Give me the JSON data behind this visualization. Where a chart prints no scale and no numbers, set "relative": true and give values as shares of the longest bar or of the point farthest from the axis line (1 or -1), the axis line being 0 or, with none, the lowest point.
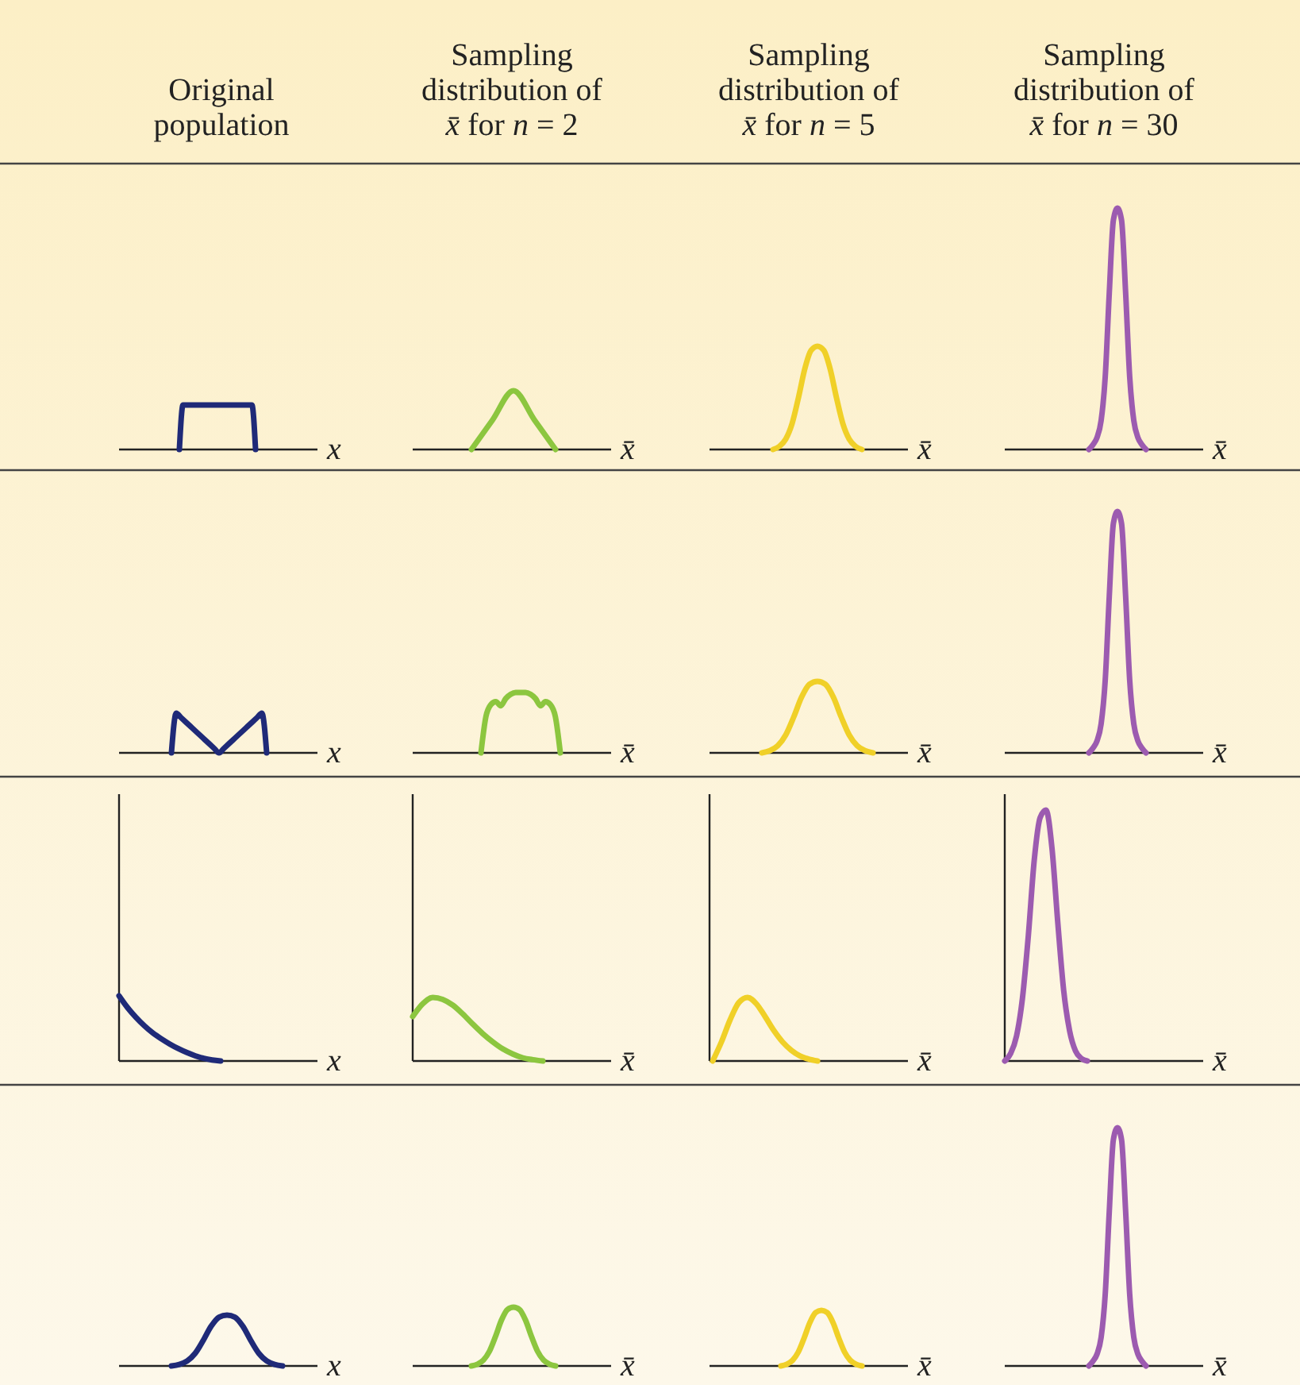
{
  "chart_data": [
    {
      "type": "line",
      "title": "Original population",
      "xlabel": "x",
      "relative": true,
      "categories": [
        null,
        null,
        null,
        null,
        null,
        null,
        null,
        null,
        null,
        null,
        null,
        null,
        null,
        null,
        null,
        null,
        null,
        null,
        null,
        null,
        null,
        null
      ],
      "series": [
        {
          "color": "#1f2a78",
          "values": [
            0,
            1,
            1,
            1,
            1,
            1,
            1,
            1,
            1,
            1,
            1,
            1,
            1,
            1,
            1,
            1,
            1,
            1,
            1,
            1,
            1,
            0
          ]
        }
      ]
    },
    {
      "type": "line",
      "title": "Sampling distribution of x̄ for n = 2",
      "xlabel": "x̄",
      "relative": true,
      "categories": [
        null,
        null,
        null,
        null,
        null
      ],
      "series": [
        {
          "color": "#8cc63f",
          "values": [
            0,
            0.5,
            1,
            0.5,
            0
          ]
        }
      ]
    },
    {
      "type": "line",
      "title": "Sampling distribution of x̄ for n = 5",
      "xlabel": "x̄",
      "relative": true,
      "categories": [
        null,
        null,
        null,
        null,
        null,
        null,
        null,
        null,
        null,
        null,
        null,
        null,
        null,
        null,
        null
      ],
      "series": [
        {
          "color": "#f0d028",
          "values": [
            0,
            0.03,
            0.1,
            0.25,
            0.5,
            0.78,
            0.96,
            1,
            0.96,
            0.78,
            0.5,
            0.25,
            0.1,
            0.03,
            0
          ]
        }
      ]
    },
    {
      "type": "line",
      "title": "Sampling distribution of x̄ for n = 30",
      "xlabel": "x̄",
      "relative": true,
      "categories": [
        null,
        null,
        null,
        null,
        null,
        null,
        null,
        null,
        null,
        null,
        null,
        null,
        null,
        null,
        null
      ],
      "series": [
        {
          "color": "#9c5bb0",
          "values": [
            0,
            0.02,
            0.05,
            0.12,
            0.3,
            0.65,
            0.95,
            1,
            0.95,
            0.65,
            0.3,
            0.12,
            0.05,
            0.02,
            0
          ]
        }
      ]
    },
    {
      "type": "line",
      "xlabel": "x",
      "relative": true,
      "categories": [
        null,
        null,
        null,
        null,
        null,
        null,
        null,
        null,
        null,
        null,
        null,
        null,
        null,
        null,
        null,
        null,
        null,
        null,
        null,
        null,
        null
      ],
      "series": [
        {
          "color": "#1f2a78",
          "values": [
            0,
            1,
            0.889,
            0.778,
            0.667,
            0.556,
            0.444,
            0.333,
            0.222,
            0.111,
            0,
            0.111,
            0.222,
            0.333,
            0.444,
            0.556,
            0.667,
            0.778,
            0.889,
            1,
            0
          ]
        }
      ]
    },
    {
      "type": "line",
      "xlabel": "x̄",
      "relative": true,
      "categories": [
        null,
        null,
        null,
        null,
        null,
        null,
        null,
        null,
        null,
        null,
        null,
        null,
        null,
        null,
        null,
        null,
        null
      ],
      "series": [
        {
          "color": "#8cc63f",
          "values": [
            0,
            0.6,
            0.8,
            0.85,
            0.78,
            0.9,
            0.97,
            1,
            1,
            1,
            0.97,
            0.9,
            0.78,
            0.85,
            0.8,
            0.6,
            0
          ]
        }
      ]
    },
    {
      "type": "line",
      "xlabel": "x̄",
      "relative": true,
      "categories": [
        null,
        null,
        null,
        null,
        null,
        null,
        null,
        null,
        null,
        null,
        null,
        null,
        null,
        null,
        null
      ],
      "series": [
        {
          "color": "#f0d028",
          "values": [
            0,
            0.03,
            0.1,
            0.25,
            0.5,
            0.78,
            0.96,
            1,
            0.96,
            0.78,
            0.5,
            0.25,
            0.1,
            0.03,
            0
          ]
        }
      ]
    },
    {
      "type": "line",
      "xlabel": "x̄",
      "relative": true,
      "categories": [
        null,
        null,
        null,
        null,
        null,
        null,
        null,
        null,
        null,
        null,
        null,
        null,
        null,
        null,
        null
      ],
      "series": [
        {
          "color": "#9c5bb0",
          "values": [
            0,
            0.02,
            0.05,
            0.12,
            0.3,
            0.65,
            0.95,
            1,
            0.95,
            0.65,
            0.3,
            0.12,
            0.05,
            0.02,
            0
          ]
        }
      ]
    },
    {
      "type": "line",
      "xlabel": "x",
      "relative": true,
      "categories": [
        null,
        null,
        null,
        null,
        null,
        null,
        null,
        null,
        null,
        null,
        null,
        null,
        null
      ],
      "series": [
        {
          "color": "#1f2a78",
          "values": [
            1,
            0.82,
            0.67,
            0.54,
            0.43,
            0.34,
            0.26,
            0.19,
            0.13,
            0.08,
            0.04,
            0.015,
            0
          ]
        }
      ]
    },
    {
      "type": "line",
      "xlabel": "x̄",
      "relative": true,
      "categories": [
        null,
        null,
        null,
        null,
        null,
        null,
        null,
        null,
        null,
        null,
        null,
        null,
        null,
        null
      ],
      "series": [
        {
          "color": "#8cc63f",
          "values": [
            0.7,
            0.9,
            1,
            0.97,
            0.88,
            0.74,
            0.58,
            0.43,
            0.3,
            0.19,
            0.11,
            0.05,
            0.02,
            0
          ]
        }
      ]
    },
    {
      "type": "line",
      "xlabel": "x̄",
      "relative": true,
      "categories": [
        null,
        null,
        null,
        null,
        null,
        null,
        null,
        null,
        null,
        null,
        null,
        null,
        null
      ],
      "series": [
        {
          "color": "#f0d028",
          "values": [
            0,
            0.3,
            0.65,
            0.92,
            1,
            0.9,
            0.7,
            0.48,
            0.3,
            0.17,
            0.08,
            0.03,
            0
          ]
        }
      ]
    },
    {
      "type": "line",
      "xlabel": "x̄",
      "relative": true,
      "categories": [
        null,
        null,
        null,
        null,
        null,
        null,
        null,
        null,
        null,
        null,
        null,
        null,
        null,
        null,
        null
      ],
      "series": [
        {
          "color": "#9c5bb0",
          "values": [
            0,
            0.03,
            0.1,
            0.25,
            0.5,
            0.8,
            0.97,
            1,
            0.85,
            0.55,
            0.28,
            0.12,
            0.04,
            0.01,
            0
          ]
        }
      ]
    },
    {
      "type": "line",
      "xlabel": "x",
      "relative": true,
      "categories": [
        null,
        null,
        null,
        null,
        null,
        null,
        null,
        null,
        null,
        null,
        null,
        null,
        null,
        null,
        null
      ],
      "series": [
        {
          "color": "#1f2a78",
          "values": [
            0,
            0.03,
            0.1,
            0.25,
            0.5,
            0.78,
            0.96,
            1,
            0.96,
            0.78,
            0.5,
            0.25,
            0.1,
            0.03,
            0
          ]
        }
      ]
    },
    {
      "type": "line",
      "xlabel": "x̄",
      "relative": true,
      "categories": [
        null,
        null,
        null,
        null,
        null,
        null,
        null,
        null,
        null,
        null,
        null,
        null,
        null,
        null,
        null
      ],
      "series": [
        {
          "color": "#8cc63f",
          "values": [
            0,
            0.03,
            0.1,
            0.25,
            0.5,
            0.78,
            0.96,
            1,
            0.96,
            0.78,
            0.5,
            0.25,
            0.1,
            0.03,
            0
          ]
        }
      ]
    },
    {
      "type": "line",
      "xlabel": "x̄",
      "relative": true,
      "categories": [
        null,
        null,
        null,
        null,
        null,
        null,
        null,
        null,
        null,
        null,
        null,
        null,
        null,
        null,
        null
      ],
      "series": [
        {
          "color": "#f0d028",
          "values": [
            0,
            0.03,
            0.1,
            0.25,
            0.5,
            0.78,
            0.96,
            1,
            0.96,
            0.78,
            0.5,
            0.25,
            0.1,
            0.03,
            0
          ]
        }
      ]
    },
    {
      "type": "line",
      "xlabel": "x̄",
      "relative": true,
      "categories": [
        null,
        null,
        null,
        null,
        null,
        null,
        null,
        null,
        null,
        null,
        null,
        null,
        null,
        null,
        null
      ],
      "series": [
        {
          "color": "#9c5bb0",
          "values": [
            0,
            0.02,
            0.05,
            0.12,
            0.3,
            0.65,
            0.95,
            1,
            0.95,
            0.65,
            0.3,
            0.12,
            0.05,
            0.02,
            0
          ]
        }
      ]
    }
  ]
}
